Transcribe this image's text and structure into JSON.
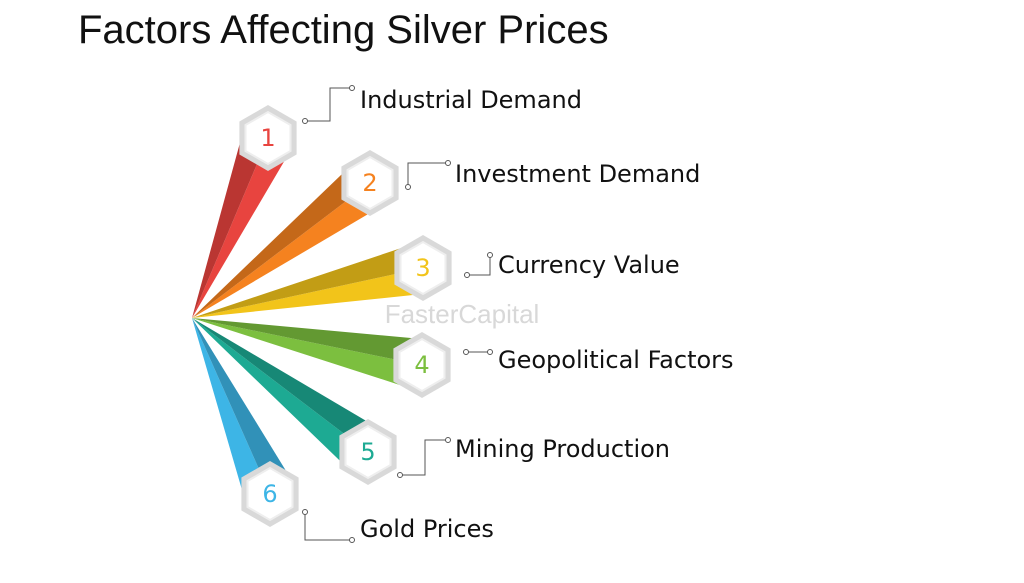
{
  "title": "Factors Affecting Silver Prices",
  "watermark": "FasterCapital",
  "items": [
    {
      "number": "1",
      "label": "Industrial Demand",
      "color": "#e8443f"
    },
    {
      "number": "2",
      "label": "Investment Demand",
      "color": "#f5821f"
    },
    {
      "number": "3",
      "label": "Currency Value",
      "color": "#f2c41a"
    },
    {
      "number": "4",
      "label": "Geopolitical Factors",
      "color": "#7cbf3f"
    },
    {
      "number": "5",
      "label": "Mining Production",
      "color": "#1daa93"
    },
    {
      "number": "6",
      "label": "Gold Prices",
      "color": "#3db5e6"
    }
  ]
}
